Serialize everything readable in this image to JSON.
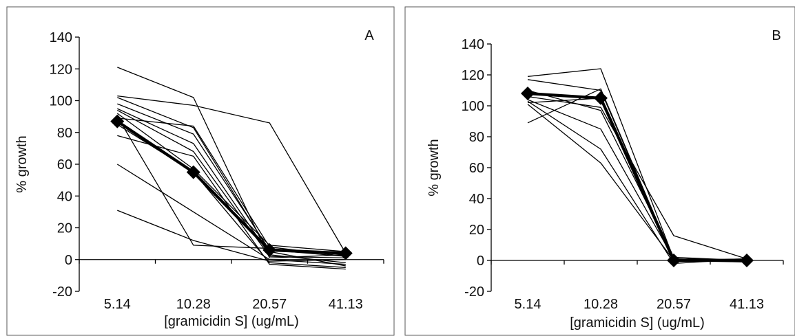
{
  "chart_data": [
    {
      "type": "line",
      "panel_label": "A",
      "xlabel": "[gramicidin S] (ug/mL)",
      "ylabel": "% growth",
      "categories": [
        "5.14",
        "10.28",
        "20.57",
        "41.13"
      ],
      "ylim": [
        -20,
        140
      ],
      "yticks": [
        -20,
        0,
        20,
        40,
        60,
        80,
        100,
        120,
        140
      ],
      "grid": false,
      "legend": "none",
      "series": [
        {
          "values": [
            121,
            102,
            1,
            3
          ],
          "highlight": false
        },
        {
          "values": [
            103,
            97,
            86,
            4
          ],
          "highlight": false
        },
        {
          "values": [
            102,
            83,
            5,
            -4
          ],
          "highlight": false
        },
        {
          "values": [
            98,
            79,
            6,
            2
          ],
          "highlight": false
        },
        {
          "values": [
            95,
            73,
            3,
            -2
          ],
          "highlight": false
        },
        {
          "values": [
            94,
            68,
            2,
            1
          ],
          "highlight": false
        },
        {
          "values": [
            92,
            57,
            9,
            5
          ],
          "highlight": false
        },
        {
          "values": [
            90,
            9,
            7,
            3
          ],
          "highlight": false
        },
        {
          "values": [
            85,
            55,
            -2,
            -5
          ],
          "highlight": false
        },
        {
          "values": [
            78,
            65,
            -3,
            -6
          ],
          "highlight": false
        },
        {
          "values": [
            60,
            30,
            0,
            -3
          ],
          "highlight": false
        },
        {
          "values": [
            31,
            12,
            -1,
            0
          ],
          "highlight": false
        },
        {
          "values": [
            89,
            84,
            8,
            2
          ],
          "highlight": false
        },
        {
          "values": [
            87,
            55,
            6,
            4
          ],
          "highlight": true
        }
      ]
    },
    {
      "type": "line",
      "panel_label": "B",
      "xlabel": "[gramicidin S] (ug/mL)",
      "ylabel": "% growth",
      "categories": [
        "5.14",
        "10.28",
        "20.57",
        "41.13"
      ],
      "ylim": [
        -20,
        140
      ],
      "yticks": [
        -20,
        0,
        20,
        40,
        60,
        80,
        100,
        120,
        140
      ],
      "grid": false,
      "legend": "none",
      "series": [
        {
          "values": [
            119,
            124,
            1,
            0
          ],
          "highlight": false
        },
        {
          "values": [
            117,
            110,
            0,
            1
          ],
          "highlight": false
        },
        {
          "values": [
            110,
            97,
            2,
            -1
          ],
          "highlight": false
        },
        {
          "values": [
            106,
            99,
            16,
            1
          ],
          "highlight": false
        },
        {
          "values": [
            104,
            85,
            1,
            0
          ],
          "highlight": false
        },
        {
          "values": [
            103,
            72,
            -2,
            1
          ],
          "highlight": false
        },
        {
          "values": [
            101,
            63,
            0,
            -1
          ],
          "highlight": false
        },
        {
          "values": [
            89,
            111,
            0,
            1
          ],
          "highlight": false
        },
        {
          "values": [
            102,
            105,
            2,
            0
          ],
          "highlight": false
        },
        {
          "values": [
            108,
            105,
            0,
            0
          ],
          "highlight": true
        }
      ]
    }
  ]
}
